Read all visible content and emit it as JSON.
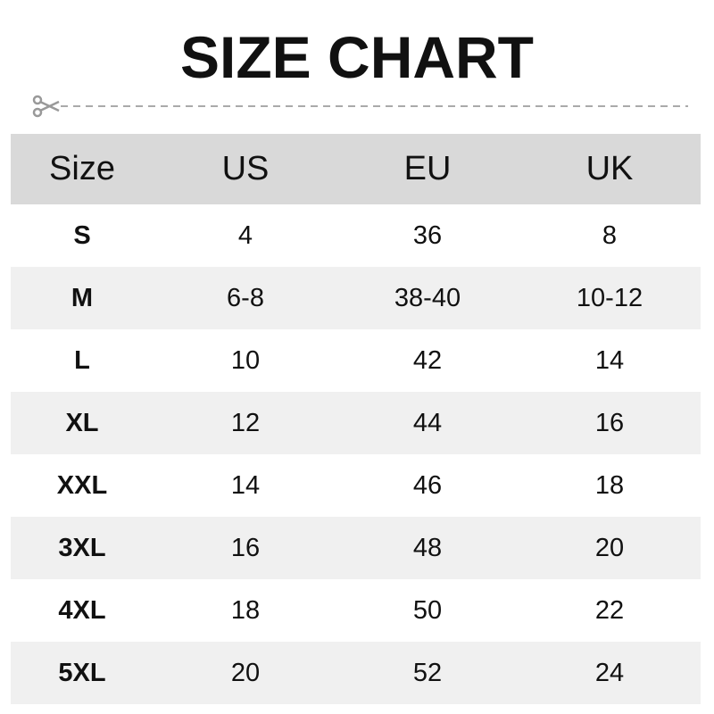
{
  "title": "SIZE CHART",
  "columns": [
    "Size",
    "US",
    "EU",
    "UK"
  ],
  "rows": [
    [
      "S",
      "4",
      "36",
      "8"
    ],
    [
      "M",
      "6-8",
      "38-40",
      "10-12"
    ],
    [
      "L",
      "10",
      "42",
      "14"
    ],
    [
      "XL",
      "12",
      "44",
      "16"
    ],
    [
      "XXL",
      "14",
      "46",
      "18"
    ],
    [
      "3XL",
      "16",
      "48",
      "20"
    ],
    [
      "4XL",
      "18",
      "50",
      "22"
    ],
    [
      "5XL",
      "20",
      "52",
      "24"
    ]
  ],
  "icons": {
    "cut_line": "scissors-icon"
  },
  "colors": {
    "header_bg": "#d9d9d9",
    "alt_row_bg": "#f0f0f0",
    "text": "#111111"
  }
}
